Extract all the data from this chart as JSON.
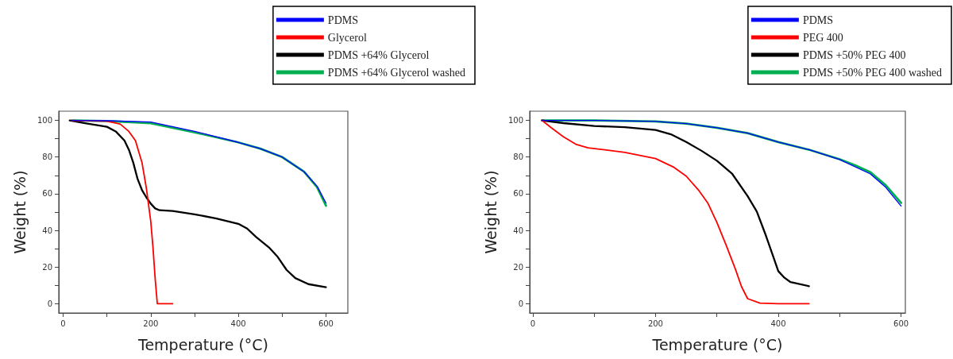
{
  "chart_data": [
    {
      "type": "line",
      "xlabel": "Temperature (°C)",
      "ylabel": "Weight (%)",
      "xlim": [
        -10,
        650
      ],
      "ylim": [
        -5,
        105
      ],
      "xticks": [
        0,
        {
          "value": 100,
          "label": null
        },
        200,
        {
          "value": 300,
          "label": null
        },
        400,
        {
          "value": 500,
          "label": null
        },
        600
      ],
      "yticks": [
        0,
        {
          "value": 10,
          "label": null
        },
        20,
        {
          "value": 30,
          "label": null
        },
        40,
        {
          "value": 50,
          "label": null
        },
        60,
        {
          "value": 70,
          "label": null
        },
        80,
        {
          "value": 90,
          "label": null
        },
        100
      ],
      "grid": false,
      "legend": "top right",
      "marker": "none",
      "line_style": "solid",
      "series": [
        {
          "name": "PDMS",
          "color": "#0000ff",
          "x": [
            20,
            100,
            200,
            300,
            400,
            450,
            500,
            550,
            580,
            600
          ],
          "values": [
            100,
            99.8,
            99.1,
            94,
            88,
            84.6,
            80,
            72,
            64,
            55
          ]
        },
        {
          "name": "Glycerol",
          "color": "#ff0000",
          "x": [
            20,
            100,
            130,
            150,
            165,
            180,
            190,
            200,
            205,
            210,
            215,
            250
          ],
          "values": [
            100,
            99.5,
            98,
            94,
            89,
            77,
            63,
            45,
            31,
            14,
            0,
            0
          ]
        },
        {
          "name": "PDMS +64% Glycerol",
          "color": "#000000",
          "x": [
            15,
            50,
            100,
            120,
            140,
            150,
            160,
            170,
            180,
            190,
            200,
            210,
            220,
            250,
            300,
            350,
            400,
            420,
            440,
            470,
            490,
            510,
            530,
            560,
            600
          ],
          "values": [
            100,
            98.5,
            96.5,
            94,
            89,
            84,
            77,
            68,
            62,
            58,
            54.6,
            52,
            51,
            50.6,
            48.8,
            46.5,
            43.6,
            41,
            36.5,
            30.7,
            25.5,
            18.5,
            14,
            10.7,
            9
          ]
        },
        {
          "name": "PDMS +64% Glycerol washed",
          "color": "#00b050",
          "x": [
            20,
            100,
            200,
            300,
            400,
            450,
            500,
            550,
            580,
            600
          ],
          "values": [
            100,
            99.6,
            98.5,
            93.5,
            88,
            84.6,
            80,
            72,
            63.5,
            53.5
          ]
        }
      ]
    },
    {
      "type": "line",
      "xlabel": "Temperature (°C)",
      "ylabel": "Weight (%)",
      "xlim": [
        -5,
        607
      ],
      "ylim": [
        -5,
        105
      ],
      "xticks": [
        0,
        {
          "value": 100,
          "label": null
        },
        200,
        {
          "value": 300,
          "label": null
        },
        400,
        {
          "value": 500,
          "label": null
        },
        600
      ],
      "yticks": [
        0,
        {
          "value": 10,
          "label": null
        },
        20,
        {
          "value": 30,
          "label": null
        },
        40,
        {
          "value": 50,
          "label": null
        },
        60,
        {
          "value": 70,
          "label": null
        },
        80,
        {
          "value": 90,
          "label": null
        },
        100
      ],
      "grid": false,
      "legend": "top right",
      "marker": "none",
      "line_style": "solid",
      "series": [
        {
          "name": "PDMS",
          "color": "#0000ff",
          "x": [
            15,
            100,
            200,
            250,
            300,
            350,
            400,
            450,
            500,
            550,
            575,
            600
          ],
          "values": [
            100,
            100,
            99.4,
            98.2,
            96,
            93,
            88.2,
            84,
            78.6,
            70.8,
            63.5,
            53.3
          ]
        },
        {
          "name": "PEG 400",
          "color": "#ff0000",
          "x": [
            15,
            30,
            50,
            70,
            90,
            120,
            150,
            200,
            230,
            250,
            270,
            285,
            300,
            315,
            330,
            340,
            350,
            370,
            400,
            450
          ],
          "values": [
            100,
            96,
            91,
            87,
            85,
            83.8,
            82.5,
            79.2,
            74.4,
            69.6,
            62,
            55,
            44.3,
            32,
            19,
            9.4,
            2.8,
            0.4,
            0,
            0
          ]
        },
        {
          "name": "PDMS +50% PEG 400",
          "color": "#000000",
          "x": [
            15,
            50,
            100,
            150,
            200,
            225,
            250,
            275,
            300,
            325,
            350,
            365,
            380,
            390,
            400,
            410,
            420,
            450
          ],
          "values": [
            100,
            98.5,
            96.9,
            96.3,
            94.8,
            92.4,
            88.2,
            83.4,
            78,
            70.8,
            58.7,
            50.3,
            37,
            27.4,
            17.8,
            14.2,
            11.8,
            9.6
          ]
        },
        {
          "name": "PDMS +50% PEG 400 washed",
          "color": "#00b050",
          "x": [
            15,
            100,
            200,
            250,
            300,
            350,
            400,
            450,
            500,
            525,
            550,
            575,
            600
          ],
          "values": [
            100,
            100,
            99.4,
            98.2,
            96,
            93,
            88.2,
            84,
            78.8,
            75.5,
            71.7,
            64.7,
            55
          ]
        }
      ]
    }
  ]
}
